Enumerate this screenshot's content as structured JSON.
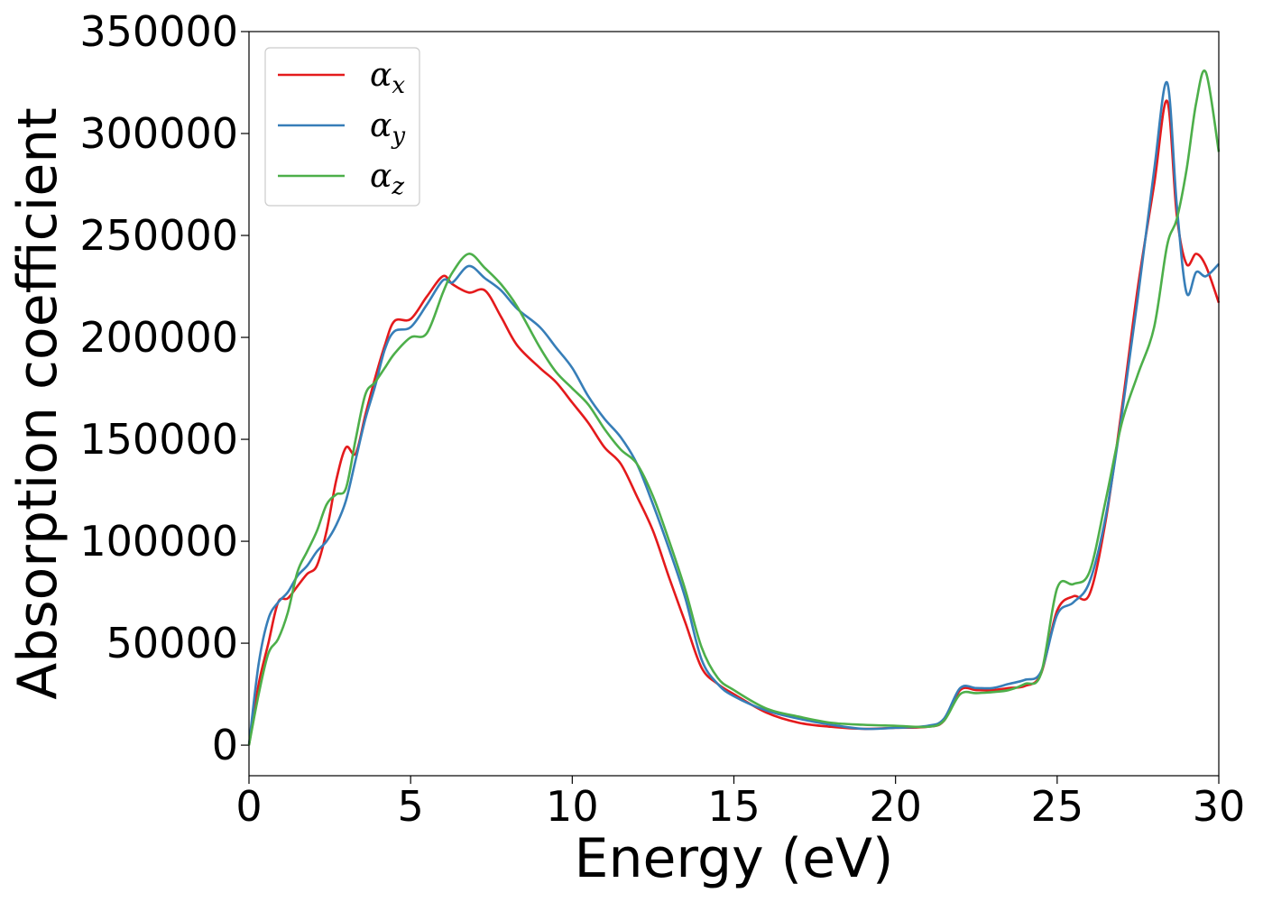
{
  "chart_data": {
    "type": "line",
    "xlabel": "Energy (eV)",
    "ylabel": "Absorption coefficient",
    "xlim": [
      0,
      30
    ],
    "ylim": [
      -15000,
      350000
    ],
    "x_ticks": [
      0,
      5,
      10,
      15,
      20,
      25,
      30
    ],
    "y_ticks": [
      0,
      50000,
      100000,
      150000,
      200000,
      250000,
      300000,
      350000
    ],
    "grid": false,
    "legend_position": "top-left",
    "series": [
      {
        "name": "α",
        "subscript": "x",
        "color": "#e41a1c",
        "x": [
          0,
          0.3,
          0.6,
          0.9,
          1.2,
          1.5,
          1.8,
          2.1,
          2.4,
          2.7,
          3.0,
          3.3,
          3.6,
          3.9,
          4.2,
          4.5,
          5.0,
          5.5,
          6.0,
          6.3,
          6.8,
          7.3,
          7.8,
          8.3,
          9.0,
          9.5,
          10.0,
          10.5,
          11.0,
          11.5,
          12.0,
          12.5,
          13.0,
          13.5,
          14.0,
          14.5,
          15.0,
          16.0,
          17.0,
          18.0,
          19.0,
          20.0,
          21.0,
          21.5,
          22.0,
          22.5,
          23.0,
          23.5,
          24.0,
          24.5,
          25.0,
          25.5,
          26.0,
          26.5,
          27.0,
          27.5,
          28.0,
          28.4,
          28.7,
          29.0,
          29.3,
          29.6,
          30.0
        ],
        "y": [
          0,
          30000,
          50000,
          70000,
          72000,
          78000,
          84000,
          88000,
          105000,
          130000,
          146000,
          143000,
          162000,
          180000,
          196000,
          208000,
          209000,
          220000,
          230000,
          226000,
          222000,
          223000,
          210000,
          196000,
          185000,
          178000,
          168000,
          158000,
          146000,
          138000,
          122000,
          105000,
          82000,
          60000,
          38000,
          30000,
          25000,
          16000,
          11000,
          9000,
          8000,
          8500,
          9000,
          12000,
          27000,
          27000,
          27000,
          28000,
          29000,
          35000,
          66000,
          73000,
          74000,
          110000,
          165000,
          225000,
          275000,
          316000,
          260000,
          236000,
          241000,
          235000,
          217000
        ]
      },
      {
        "name": "α",
        "subscript": "y",
        "color": "#377eb8",
        "x": [
          0,
          0.3,
          0.6,
          0.9,
          1.2,
          1.5,
          1.8,
          2.1,
          2.4,
          2.7,
          3.0,
          3.3,
          3.6,
          3.9,
          4.2,
          4.5,
          5.0,
          5.5,
          6.0,
          6.3,
          6.8,
          7.3,
          7.8,
          8.3,
          9.0,
          9.5,
          10.0,
          10.5,
          11.0,
          11.5,
          12.0,
          12.5,
          13.0,
          13.5,
          14.0,
          14.5,
          15.0,
          16.0,
          17.0,
          18.0,
          19.0,
          20.0,
          21.0,
          21.5,
          22.0,
          22.5,
          23.0,
          23.5,
          24.0,
          24.5,
          25.0,
          25.5,
          26.0,
          26.5,
          27.0,
          27.5,
          28.0,
          28.4,
          28.7,
          29.0,
          29.3,
          29.6,
          30.0
        ],
        "y": [
          0,
          40000,
          62000,
          70000,
          75000,
          83000,
          88000,
          95000,
          100000,
          108000,
          120000,
          140000,
          160000,
          176000,
          194000,
          203000,
          205000,
          216000,
          228000,
          227000,
          235000,
          229000,
          223000,
          214000,
          205000,
          195000,
          185000,
          171000,
          160000,
          151000,
          138000,
          118000,
          96000,
          72000,
          42000,
          30000,
          24000,
          17000,
          13000,
          10000,
          8000,
          8500,
          9500,
          13000,
          28000,
          28000,
          28000,
          30000,
          32000,
          36000,
          64000,
          70000,
          80000,
          112000,
          162000,
          220000,
          282000,
          325000,
          265000,
          222000,
          232000,
          230000,
          236000
        ]
      },
      {
        "name": "α",
        "subscript": "z",
        "color": "#4daf4a",
        "x": [
          0,
          0.3,
          0.6,
          0.9,
          1.2,
          1.5,
          1.8,
          2.1,
          2.4,
          2.7,
          3.0,
          3.3,
          3.6,
          3.9,
          4.2,
          4.5,
          5.0,
          5.5,
          6.0,
          6.3,
          6.8,
          7.3,
          7.8,
          8.3,
          9.0,
          9.5,
          10.0,
          10.5,
          11.0,
          11.5,
          12.0,
          12.5,
          13.0,
          13.5,
          14.0,
          14.5,
          15.0,
          16.0,
          17.0,
          18.0,
          19.0,
          20.0,
          21.0,
          21.5,
          22.0,
          22.5,
          23.0,
          23.5,
          24.0,
          24.5,
          25.0,
          25.5,
          26.0,
          26.5,
          27.0,
          27.5,
          28.0,
          28.4,
          28.7,
          29.0,
          29.3,
          29.6,
          30.0
        ],
        "y": [
          0,
          25000,
          45000,
          52000,
          65000,
          85000,
          95000,
          105000,
          118000,
          123000,
          126000,
          150000,
          172000,
          178000,
          185000,
          192000,
          200000,
          202000,
          222000,
          232000,
          241000,
          234000,
          226000,
          215000,
          195000,
          183000,
          175000,
          167000,
          155000,
          145000,
          138000,
          122000,
          100000,
          76000,
          48000,
          33000,
          27000,
          18000,
          14000,
          11000,
          10000,
          9500,
          9000,
          12000,
          25000,
          25500,
          26000,
          27000,
          30000,
          35000,
          77000,
          79000,
          85000,
          120000,
          158000,
          182000,
          205000,
          245000,
          258000,
          282000,
          315000,
          330000,
          291000
        ]
      }
    ]
  }
}
